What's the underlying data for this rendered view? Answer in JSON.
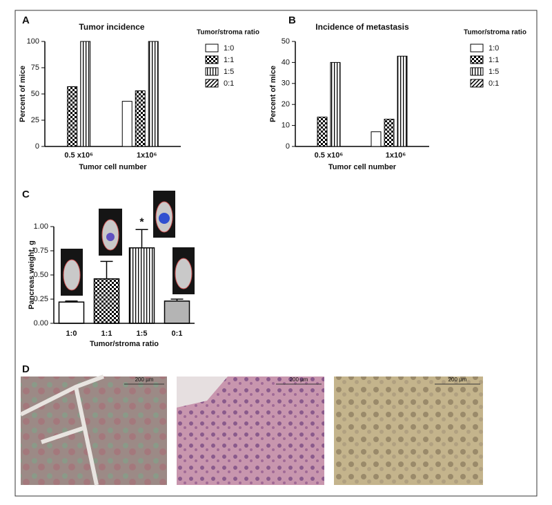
{
  "chart_data": [
    {
      "type": "grouped_bar",
      "panel": "A",
      "title": "Tumor incidence",
      "ylabel": "Percent of mice",
      "xlabel": "Tumor cell number",
      "categories": [
        "0.5 x10⁶",
        "1x10⁶"
      ],
      "legend_title": "Tumor/stroma ratio",
      "legend": "right",
      "series": [
        {
          "name": "1:0",
          "pattern": "solid",
          "color": "#ffffff",
          "values": [
            0,
            43
          ]
        },
        {
          "name": "1:1",
          "pattern": "checker",
          "color": "#000000",
          "values": [
            57,
            53
          ]
        },
        {
          "name": "1:5",
          "pattern": "vstripe",
          "color": "#000000",
          "values": [
            100,
            100
          ]
        },
        {
          "name": "0:1",
          "pattern": "diag",
          "color": "#000000",
          "values": [
            0,
            0
          ]
        }
      ],
      "ylim": [
        0,
        100
      ],
      "yticks": [
        0,
        25,
        50,
        75,
        100
      ]
    },
    {
      "type": "grouped_bar",
      "panel": "B",
      "title": "Incidence of metastasis",
      "ylabel": "Percent of mice",
      "xlabel": "Tumor cell number",
      "categories": [
        "0.5 x10⁶",
        "1x10⁶"
      ],
      "legend_title": "Tumor/stroma ratio",
      "legend": "right",
      "series": [
        {
          "name": "1:0",
          "pattern": "solid",
          "color": "#ffffff",
          "values": [
            0,
            7
          ]
        },
        {
          "name": "1:1",
          "pattern": "checker",
          "color": "#000000",
          "values": [
            14,
            13
          ]
        },
        {
          "name": "1:5",
          "pattern": "vstripe",
          "color": "#000000",
          "values": [
            40,
            43
          ]
        },
        {
          "name": "0:1",
          "pattern": "diag",
          "color": "#000000",
          "values": [
            0,
            0
          ]
        }
      ],
      "ylim": [
        0,
        50
      ],
      "yticks": [
        0,
        10,
        20,
        30,
        40,
        50
      ]
    },
    {
      "type": "error_bar",
      "panel": "C",
      "ylabel": "Pancreas weight, g",
      "xlabel": "Tumor/stroma ratio",
      "categories": [
        "1:0",
        "1:1",
        "1:5",
        "0:1"
      ],
      "values": [
        0.22,
        0.46,
        0.78,
        0.23
      ],
      "errors": [
        0.01,
        0.18,
        0.19,
        0.02
      ],
      "patterns": [
        "solid",
        "checker",
        "vstripe",
        "solid"
      ],
      "colors": [
        "#ffffff",
        "#000000",
        "#000000",
        "#b4b4b4"
      ],
      "annotations": [
        {
          "text": "*",
          "category": "1:5"
        }
      ],
      "ylim": [
        0,
        1
      ],
      "yticks": [
        {
          "value": 0,
          "label": "0.00"
        },
        {
          "value": 0.25,
          "label": "0.25"
        },
        {
          "value": 0.5,
          "label": "0.50"
        },
        {
          "value": 0.75,
          "label": "0.75"
        },
        {
          "value": 1,
          "label": "1.00"
        }
      ]
    }
  ],
  "panel_d": {
    "label": "D",
    "scale_labels": [
      "200 µm",
      "200 µm",
      "200 µm"
    ]
  }
}
